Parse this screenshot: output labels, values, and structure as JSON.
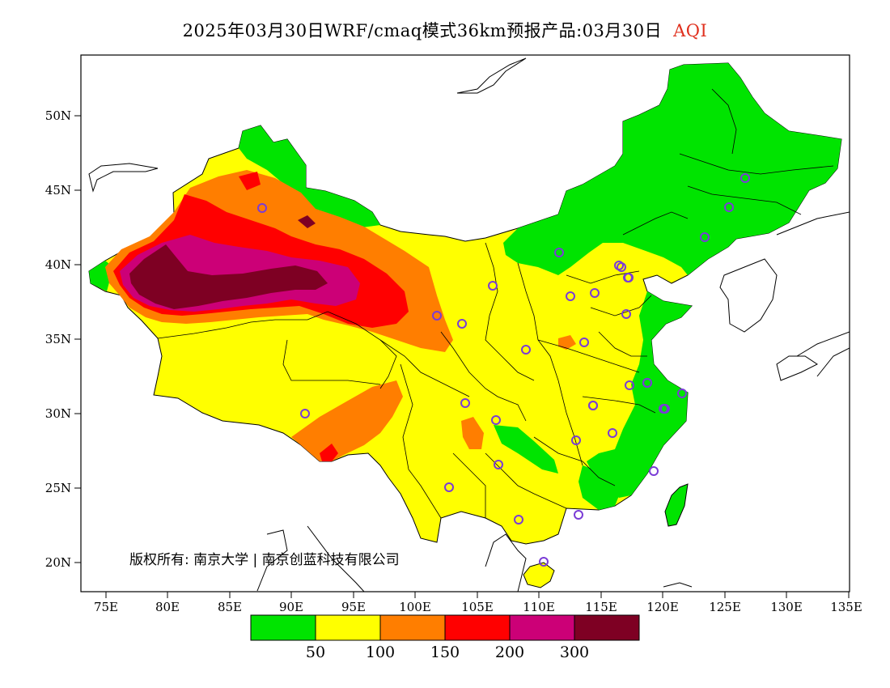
{
  "title": {
    "main": "2025年03月30日WRF/cmaq模式36km预报产品:03月30日",
    "variable": "AQI",
    "variable_color": "#e0301e"
  },
  "axes": {
    "lat_ticks": [
      "50N",
      "45N",
      "40N",
      "35N",
      "30N",
      "25N",
      "20N"
    ],
    "lon_ticks": [
      "75E",
      "80E",
      "85E",
      "90E",
      "95E",
      "100E",
      "105E",
      "110E",
      "115E",
      "120E",
      "125E",
      "130E",
      "135E"
    ]
  },
  "copyright": "版权所有: 南京大学 | 南京创蓝科技有限公司",
  "legend": {
    "colors": [
      "#00e400",
      "#ffff00",
      "#ff7e00",
      "#ff0000",
      "#cc0077",
      "#7e0023"
    ],
    "labels": [
      "50",
      "100",
      "150",
      "200",
      "300"
    ]
  },
  "markers": {
    "color": "#7a3cd6",
    "count": 36
  }
}
